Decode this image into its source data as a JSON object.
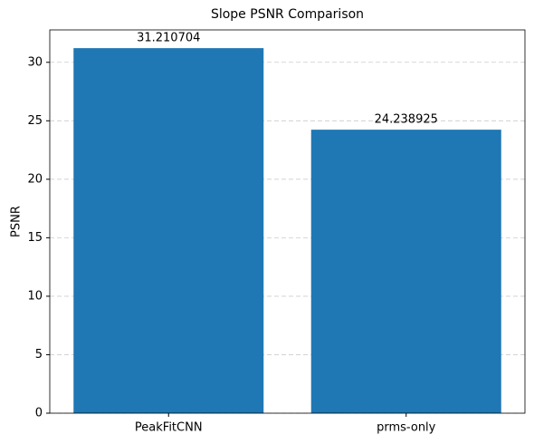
{
  "chart_data": {
    "type": "bar",
    "title": "Slope PSNR Comparison",
    "y_label": "PSNR",
    "categories": [
      "PeakFitCNN",
      "prms-only"
    ],
    "values": [
      31.210704,
      24.238925
    ],
    "color": "#1f77b4",
    "ylim": [
      0,
      32.77
    ],
    "yticks": [
      0,
      5,
      10,
      15,
      20,
      25,
      30
    ],
    "grid": true
  }
}
